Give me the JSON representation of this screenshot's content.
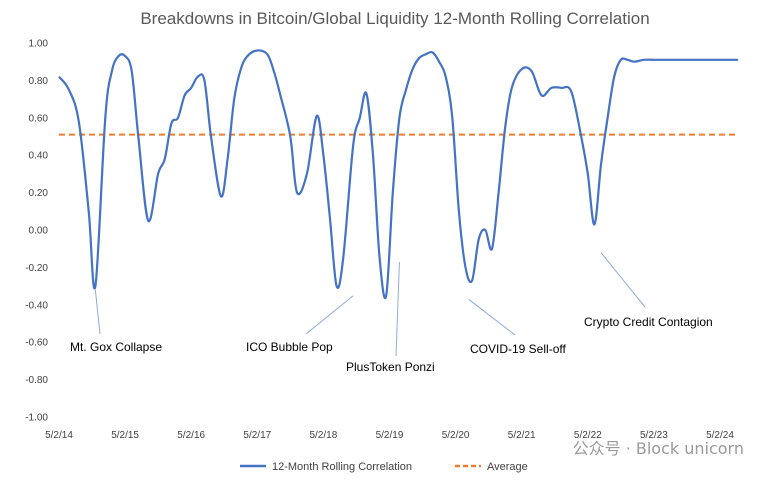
{
  "chart_data": {
    "type": "line",
    "title": "Breakdowns in Bitcoin/Global Liquidity 12-Month Rolling Correlation",
    "xlabel": "",
    "ylabel": "",
    "ylim": [
      -1.0,
      1.0
    ],
    "yticks": [
      "1.00",
      "0.80",
      "0.60",
      "0.40",
      "0.20",
      "0.00",
      "-0.20",
      "-0.40",
      "-0.60",
      "-0.80",
      "-1.00"
    ],
    "xticks": [
      "5/2/14",
      "5/2/15",
      "5/2/16",
      "5/2/17",
      "5/2/18",
      "5/2/19",
      "5/2/20",
      "5/2/21",
      "5/2/22",
      "5/2/23",
      "5/2/24"
    ],
    "xlim_years": [
      0,
      10.4
    ],
    "legend_position": "bottom",
    "grid": false,
    "average": 0.51,
    "series": [
      {
        "name": "12-Month Rolling Correlation",
        "color": "#4472c4",
        "x_years": [
          0,
          0.15,
          0.3,
          0.45,
          0.55,
          0.7,
          0.8,
          0.9,
          1.0,
          1.1,
          1.2,
          1.35,
          1.5,
          1.6,
          1.7,
          1.8,
          1.9,
          2.0,
          2.1,
          2.2,
          2.3,
          2.45,
          2.55,
          2.65,
          2.75,
          2.85,
          3.0,
          3.15,
          3.25,
          3.35,
          3.5,
          3.6,
          3.75,
          3.9,
          4.0,
          4.1,
          4.2,
          4.3,
          4.45,
          4.55,
          4.65,
          4.75,
          4.85,
          4.95,
          5.05,
          5.15,
          5.25,
          5.35,
          5.45,
          5.55,
          5.65,
          5.75,
          5.85,
          5.95,
          6.05,
          6.15,
          6.25,
          6.35,
          6.45,
          6.55,
          6.65,
          6.75,
          6.85,
          7.0,
          7.15,
          7.3,
          7.45,
          7.6,
          7.75,
          7.9,
          8.0,
          8.1,
          8.2,
          8.3,
          8.4,
          8.5,
          8.6,
          8.7,
          8.85,
          9.0,
          9.15,
          9.3,
          9.4,
          9.5,
          9.6,
          9.7,
          9.8,
          9.9,
          10.0,
          10.1,
          10.2,
          10.3,
          10.4
        ],
        "values": [
          0.82,
          0.75,
          0.58,
          0.1,
          -0.3,
          0.6,
          0.85,
          0.93,
          0.93,
          0.85,
          0.5,
          0.05,
          0.3,
          0.38,
          0.57,
          0.6,
          0.72,
          0.76,
          0.82,
          0.8,
          0.5,
          0.18,
          0.38,
          0.7,
          0.86,
          0.93,
          0.96,
          0.94,
          0.85,
          0.72,
          0.5,
          0.2,
          0.3,
          0.61,
          0.4,
          0.06,
          -0.3,
          -0.15,
          0.45,
          0.6,
          0.73,
          0.4,
          -0.15,
          -0.35,
          0.2,
          0.6,
          0.75,
          0.86,
          0.92,
          0.94,
          0.95,
          0.9,
          0.82,
          0.6,
          0.1,
          -0.2,
          -0.27,
          -0.05,
          0.0,
          -0.1,
          0.2,
          0.55,
          0.76,
          0.86,
          0.85,
          0.72,
          0.76,
          0.76,
          0.74,
          0.5,
          0.3,
          0.03,
          0.35,
          0.6,
          0.82,
          0.91,
          0.91,
          0.9,
          0.91,
          0.91,
          0.91,
          0.91,
          0.91,
          0.91,
          0.91,
          0.91,
          0.91,
          0.91,
          0.91,
          0.91,
          0.91,
          0.91,
          0.91
        ]
      },
      {
        "name": "Average",
        "color": "#ed7d31",
        "style": "dashed"
      }
    ],
    "annotations": [
      {
        "text": "Mt. Gox Collapse",
        "x_year": 0.55,
        "y": -0.3
      },
      {
        "text": "ICO Bubble Pop",
        "x_year": 4.45,
        "y": -0.33
      },
      {
        "text": "PlusToken Ponzi",
        "x_year": 5.15,
        "y": -0.15
      },
      {
        "text": "COVID-19 Sell-off",
        "x_year": 6.2,
        "y": -0.35
      },
      {
        "text": "Crypto Credit Contagion",
        "x_year": 8.2,
        "y": -0.1
      }
    ],
    "watermark": "公众号 · Block unicorn"
  }
}
